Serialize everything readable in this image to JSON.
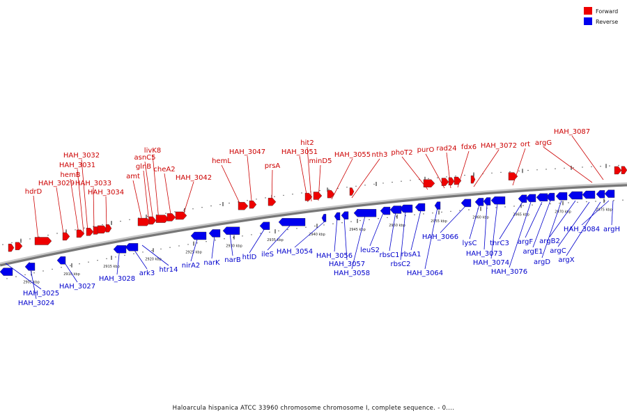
{
  "legend": {
    "forward_label": "Forward",
    "reverse_label": "Reverse",
    "forward_color": "#ee0000",
    "reverse_color": "#0000ee"
  },
  "caption": "Haloarcula hispanica ATCC 33960 chromosome chromosome I, complete sequence. - 0....",
  "ticks": [
    "2905 kbp",
    "2910 kbp",
    "2915 kbp",
    "2920 kbp",
    "2925 kbp",
    "2930 kbp",
    "2935 kbp",
    "2940 kbp",
    "2945 kbp",
    "2950 kbp",
    "2955 kbp",
    "2960 kbp",
    "2965 kbp",
    "2970 kbp",
    "2975 kbp"
  ],
  "forward_genes": [
    "hdrD",
    "HAH_3029",
    "hemB",
    "HAH_3031",
    "HAH_3032",
    "HAH_3033",
    "HAH_3034",
    "amt",
    "glnB",
    "asnC5",
    "livK8",
    "cheA2",
    "HAH_3042",
    "hemL",
    "HAH_3047",
    "prsA",
    "HAH_3051",
    "hit2",
    "minD5",
    "HAH_3055",
    "nth3",
    "phoT2",
    "purO",
    "rad24",
    "fdx6",
    "HAH_3072",
    "ort",
    "argG",
    "HAH_3087"
  ],
  "reverse_genes": [
    "HAH_3025",
    "HAH_3024",
    "HAH_3027",
    "HAH_3028",
    "ark3",
    "htr14",
    "nirA2",
    "narK",
    "narB",
    "htlD",
    "ileS",
    "HAH_3054",
    "HAH_3056",
    "HAH_3057",
    "HAH_3058",
    "leuS2",
    "rbsC1",
    "rbsC2",
    "rbsA1",
    "HAH_3064",
    "HAH_3066",
    "lysC",
    "HAH_3073",
    "HAH_3074",
    "thrC3",
    "HAH_3076",
    "argF",
    "argE1",
    "argD",
    "argB2",
    "argC",
    "argX",
    "HAH_3084",
    "argH"
  ]
}
